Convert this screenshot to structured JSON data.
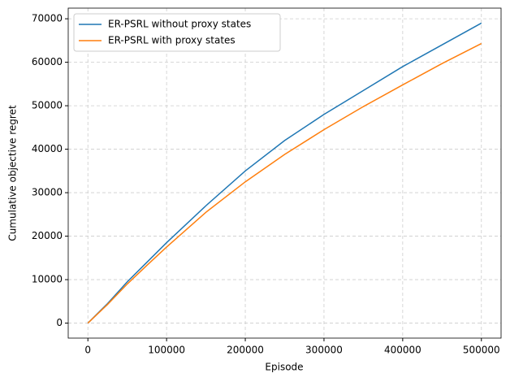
{
  "chart_data": {
    "type": "line",
    "x_label": "Episode",
    "y_label": "Cumulative objective regret",
    "x": [
      0,
      25000,
      50000,
      75000,
      100000,
      150000,
      200000,
      250000,
      300000,
      350000,
      400000,
      450000,
      500000
    ],
    "series": [
      {
        "name": "ER-PSRL without proxy states",
        "color": "#1f77b4",
        "values": [
          0,
          4500,
          9500,
          14000,
          18500,
          27000,
          35000,
          42000,
          48000,
          53500,
          59000,
          64000,
          69000
        ]
      },
      {
        "name": "ER-PSRL with proxy states",
        "color": "#ff7f0e",
        "values": [
          0,
          4300,
          9000,
          13300,
          17500,
          25500,
          32500,
          38800,
          44500,
          49800,
          54800,
          59700,
          64300
        ]
      }
    ],
    "xlim": [
      -25000,
      525000
    ],
    "ylim": [
      -3450,
      72450
    ],
    "xticks": [
      0,
      100000,
      200000,
      300000,
      400000,
      500000
    ],
    "yticks": [
      0,
      10000,
      20000,
      30000,
      40000,
      50000,
      60000,
      70000
    ],
    "grid": true,
    "legend": "upper-left"
  }
}
